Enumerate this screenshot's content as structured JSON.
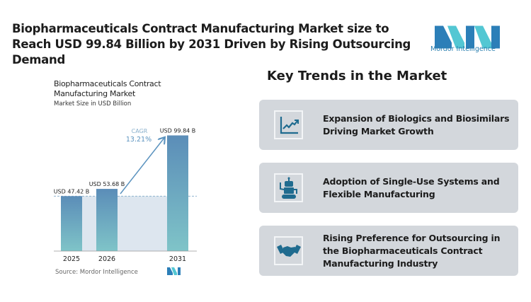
{
  "header": {
    "title": "Biopharmaceuticals Contract Manufacturing Market size to Reach USD 99.84 Billion by 2031 Driven by Rising Outsourcing Demand",
    "logo_text": "Mordor Intelligence"
  },
  "chart_data": {
    "type": "bar",
    "title": "Biopharmaceuticals Contract Manufacturing Market",
    "subtitle": "Market Size in USD Billion",
    "categories": [
      "2025",
      "2026",
      "2031"
    ],
    "values": [
      47.42,
      53.68,
      99.84
    ],
    "data_labels": [
      "USD 47.42 B",
      "USD 53.68 B",
      "USD 99.84 B"
    ],
    "annotation": {
      "label": "CAGR",
      "value": "13.21%"
    },
    "source": "Source:  Mordor Intelligence",
    "ylim": [
      0,
      105
    ],
    "grid": false,
    "colors": {
      "bar_top": "#5b8db8",
      "bar_bottom": "#7fc4c8",
      "arrow": "#5b93bf",
      "band": "#dde6ef"
    }
  },
  "trends": {
    "title": "Key Trends in the Market",
    "items": [
      {
        "icon": "line-chart-up-icon",
        "text": "Expansion of Biologics and Biosimilars Driving Market Growth"
      },
      {
        "icon": "robot-icon",
        "text": "Adoption of Single-Use Systems and Flexible Manufacturing"
      },
      {
        "icon": "handshake-icon",
        "text": "Rising Preference for Outsourcing in the Biopharmaceuticals Contract Manufacturing Industry"
      }
    ]
  }
}
